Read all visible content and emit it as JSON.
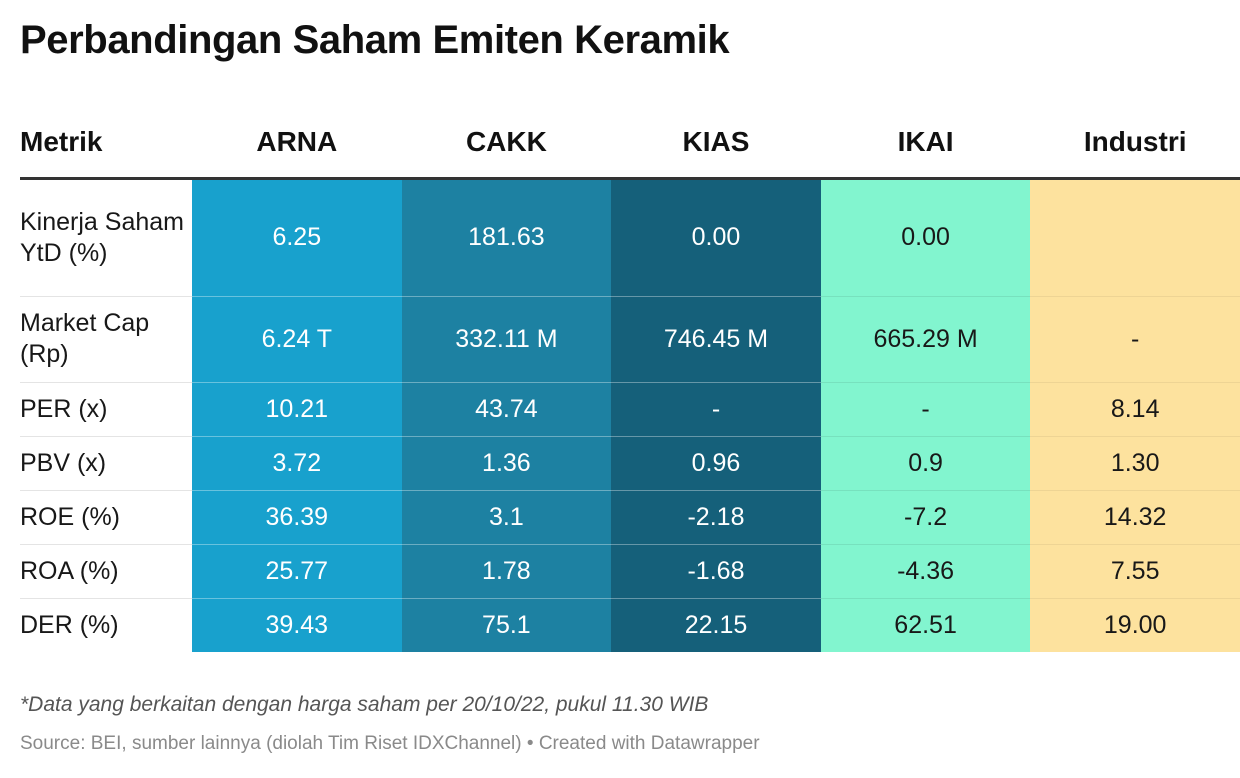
{
  "title": "Perbandingan Saham Emiten Keramik",
  "note": "*Data yang berkaitan dengan harga saham per 20/10/22, pukul 11.30 WIB",
  "source": "Source: BEI, sumber lainnya (diolah Tim Riset IDXChannel) • Created with Datawrapper",
  "colors": {
    "ARNA": "#18a1cd",
    "CAKK": "#1d81a2",
    "KIAS": "#15607a",
    "IKAI": "#82f5cf",
    "Industri": "#fde29e"
  },
  "chart_data": {
    "type": "table",
    "title": "Perbandingan Saham Emiten Keramik",
    "columns": [
      "Metrik",
      "ARNA",
      "CAKK",
      "KIAS",
      "IKAI",
      "Industri"
    ],
    "rows": [
      {
        "metric": "Kinerja Saham YtD (%)",
        "values": [
          "6.25",
          "181.63",
          "0.00",
          "0.00",
          ""
        ]
      },
      {
        "metric": "Market Cap (Rp)",
        "values": [
          "6.24 T",
          "332.11 M",
          "746.45 M",
          "665.29 M",
          "-"
        ]
      },
      {
        "metric": "PER (x)",
        "values": [
          "10.21",
          "43.74",
          "-",
          "-",
          "8.14"
        ]
      },
      {
        "metric": "PBV (x)",
        "values": [
          "3.72",
          "1.36",
          "0.96",
          "0.9",
          "1.30"
        ]
      },
      {
        "metric": "ROE (%)",
        "values": [
          "36.39",
          "3.1",
          "-2.18",
          "-7.2",
          "14.32"
        ]
      },
      {
        "metric": "ROA (%)",
        "values": [
          "25.77",
          "1.78",
          "-1.68",
          "-4.36",
          "7.55"
        ]
      },
      {
        "metric": "DER (%)",
        "values": [
          "39.43",
          "75.1",
          "22.15",
          "62.51",
          "19.00"
        ]
      }
    ]
  }
}
